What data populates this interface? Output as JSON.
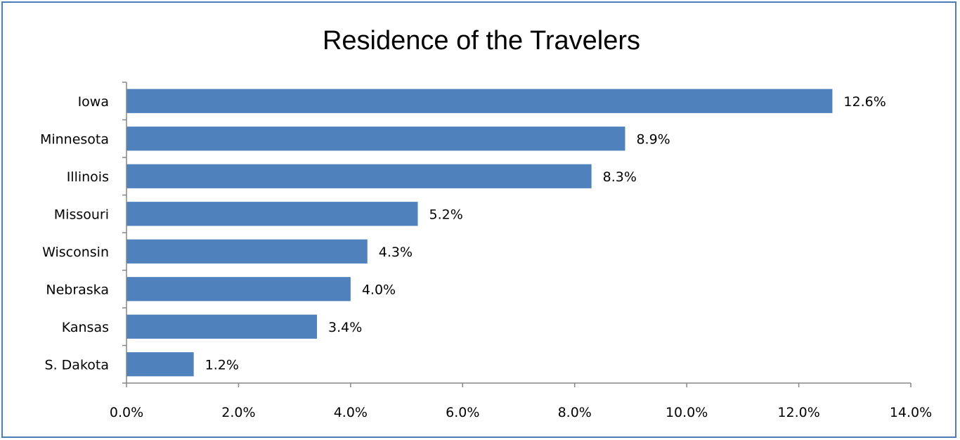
{
  "chart_data": {
    "type": "bar",
    "orientation": "horizontal",
    "title": "Residence of the Travelers",
    "xlabel": "",
    "ylabel": "",
    "categories": [
      "Iowa",
      "Minnesota",
      "Illinois",
      "Missouri",
      "Wisconsin",
      "Nebraska",
      "Kansas",
      "S. Dakota"
    ],
    "values": [
      12.6,
      8.9,
      8.3,
      5.2,
      4.3,
      4.0,
      3.4,
      1.2
    ],
    "data_labels": [
      "12.6%",
      "8.9%",
      "8.3%",
      "5.2%",
      "4.3%",
      "4.0%",
      "3.4%",
      "1.2%"
    ],
    "xlim": [
      0,
      14
    ],
    "x_ticks": [
      0,
      2,
      4,
      6,
      8,
      10,
      12,
      14
    ],
    "x_tick_labels": [
      "0.0%",
      "2.0%",
      "4.0%",
      "6.0%",
      "8.0%",
      "10.0%",
      "12.0%",
      "14.0%"
    ],
    "grid": false,
    "legend": "none",
    "bar_color": "#4f81bd",
    "border_color": "#4a7ebb"
  }
}
